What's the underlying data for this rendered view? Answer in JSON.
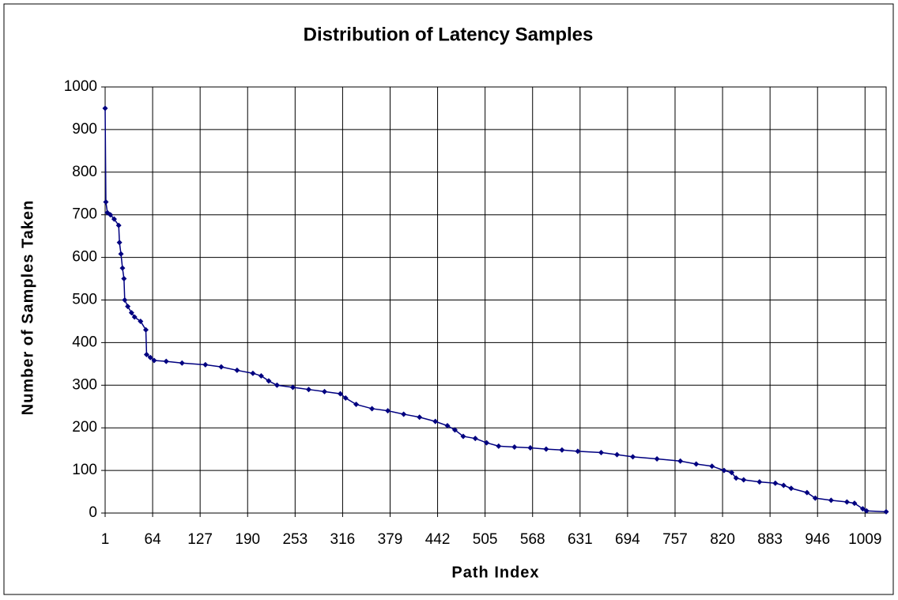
{
  "chart_data": {
    "type": "line",
    "title": "Distribution of Latency Samples",
    "x_label": "Path Index",
    "y_label": "Number of Samples Taken",
    "xlim": [
      1,
      1037
    ],
    "xticks": [
      1,
      64,
      127,
      190,
      253,
      316,
      379,
      442,
      505,
      568,
      631,
      694,
      757,
      820,
      883,
      946,
      1009
    ],
    "ylim": [
      0,
      1000
    ],
    "yticks": [
      0,
      100,
      200,
      300,
      400,
      500,
      600,
      700,
      800,
      900,
      1000
    ],
    "grid": true,
    "series": [
      {
        "color": "#000080",
        "x": [
          1,
          2,
          4,
          8,
          13,
          19,
          20,
          22,
          24,
          26,
          27,
          31,
          36,
          40,
          48,
          55,
          56,
          61,
          66,
          82,
          103,
          134,
          155,
          176,
          197,
          208,
          218,
          229,
          250,
          271,
          292,
          313,
          320,
          334,
          355,
          376,
          397,
          418,
          439,
          455,
          465,
          476,
          492,
          507,
          523,
          544,
          565,
          586,
          607,
          628,
          659,
          680,
          701,
          733,
          764,
          785,
          806,
          822,
          832,
          838,
          848,
          869,
          890,
          901,
          911,
          932,
          943,
          964,
          985,
          995,
          1006,
          1011,
          1037
        ],
        "values": [
          950,
          730,
          705,
          700,
          690,
          675,
          635,
          608,
          575,
          550,
          500,
          485,
          470,
          460,
          450,
          430,
          372,
          365,
          358,
          356,
          352,
          348,
          343,
          335,
          328,
          322,
          310,
          300,
          295,
          290,
          285,
          280,
          270,
          255,
          245,
          240,
          232,
          225,
          215,
          205,
          195,
          180,
          175,
          165,
          157,
          155,
          153,
          150,
          148,
          145,
          142,
          137,
          132,
          127,
          122,
          115,
          110,
          100,
          95,
          82,
          78,
          73,
          70,
          65,
          58,
          48,
          35,
          30,
          26,
          23,
          10,
          5,
          3
        ]
      }
    ]
  }
}
